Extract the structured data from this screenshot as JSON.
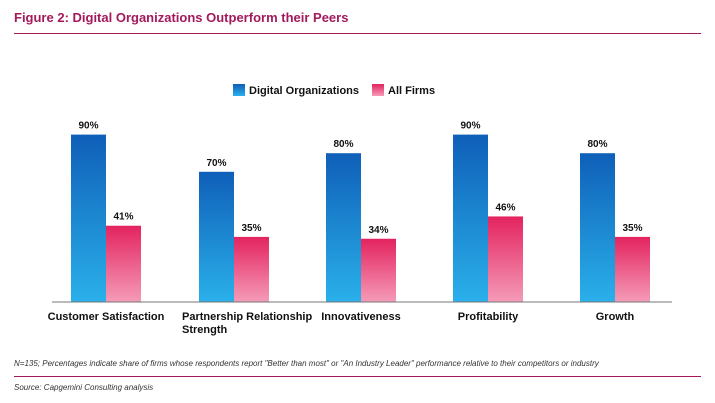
{
  "figure": {
    "title": "Figure 2: Digital Organizations Outperform their Peers",
    "note": "N=135; Percentages indicate share of firms whose respondents report \"Better than most\" or \"An Industry Leader\" performance relative to their competitors or industry",
    "source": "Source: Capgemini Consulting analysis"
  },
  "colors": {
    "accent": "#a3195b",
    "digital_top": "#0f5fb8",
    "digital_bottom": "#2ab0ea",
    "allfirms_top": "#e3235f",
    "allfirms_bottom": "#f59bb8"
  },
  "chart_data": {
    "type": "bar",
    "title": "",
    "xlabel": "",
    "ylabel": "",
    "ylim": [
      0,
      100
    ],
    "grid": false,
    "legend": "top-center",
    "categories": [
      [
        "Customer Satisfaction"
      ],
      [
        "Partnership Relationship",
        "Strength"
      ],
      [
        "Innovativeness"
      ],
      [
        "Profitability"
      ],
      [
        "Growth"
      ]
    ],
    "series": [
      {
        "name": "Digital Organizations",
        "values": [
          90,
          70,
          80,
          90,
          80
        ],
        "labels": [
          "90%",
          "70%",
          "80%",
          "90%",
          "80%"
        ]
      },
      {
        "name": "All Firms",
        "values": [
          41,
          35,
          34,
          46,
          35
        ],
        "labels": [
          "41%",
          "35%",
          "34%",
          "46%",
          "35%"
        ]
      }
    ]
  }
}
